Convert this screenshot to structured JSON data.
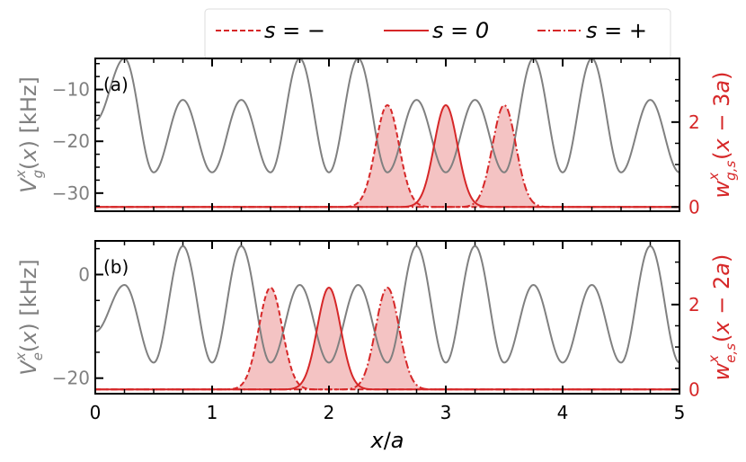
{
  "colors": {
    "potential": "#808080",
    "wannier": "#d62728",
    "fill": "#f2b8b8",
    "axis": "#000000"
  },
  "legend": [
    {
      "label": "s = −",
      "style": "dashed"
    },
    {
      "label": "s = 0",
      "style": "solid"
    },
    {
      "label": "s = +",
      "style": "dashdot"
    }
  ],
  "chart_data": [
    {
      "type": "line",
      "panel_label": "(a)",
      "xlabel": "x/a",
      "xlim": [
        0,
        5
      ],
      "xticks": [
        0,
        1,
        2,
        3,
        4,
        5
      ],
      "ylabel_left": "V_g^x(x) [kHz]",
      "ylim_left": [
        -33.5,
        -4
      ],
      "yticks_left": [
        -30,
        -20,
        -10
      ],
      "ytick_labels_left": [
        "−30",
        "−20",
        "−10"
      ],
      "ylabel_right": "w^x_{g,s}(x − 3a)",
      "ylim_right": [
        -0.1,
        3.5
      ],
      "yticks_right": [
        0,
        2
      ],
      "ytick_labels_right": [
        "0",
        "2"
      ],
      "potential": {
        "name": "V_g",
        "sampled_x": [
          0,
          0.25,
          0.5,
          0.75,
          1.0,
          1.25,
          1.5,
          1.75,
          2.0,
          2.25,
          2.5,
          2.75,
          3.0,
          3.25,
          3.5,
          3.75,
          4.0,
          4.25,
          4.5,
          4.75,
          5.0
        ],
        "sampled_y": [
          -16,
          -4,
          -26,
          -12,
          -26,
          -12,
          -26,
          -4,
          -26,
          -4,
          -26,
          -12,
          -26,
          -12,
          -26,
          -4,
          -26,
          -4,
          -26,
          -12,
          -26
        ]
      },
      "series": [
        {
          "name": "s = −",
          "style": "dashed",
          "center": 2.5,
          "peak": 2.4,
          "baseline": 0
        },
        {
          "name": "s = 0",
          "style": "solid",
          "center": 3.0,
          "peak": 2.4,
          "baseline": 0
        },
        {
          "name": "s = +",
          "style": "dashdot",
          "center": 3.5,
          "peak": 2.4,
          "baseline": 0
        }
      ]
    },
    {
      "type": "line",
      "panel_label": "(b)",
      "xlabel": "x/a",
      "xlim": [
        0,
        5
      ],
      "xticks": [
        0,
        1,
        2,
        3,
        4,
        5
      ],
      "xtick_labels": [
        "0",
        "1",
        "2",
        "3",
        "4",
        "5"
      ],
      "ylabel_left": "V_e^x(x) [kHz]",
      "ylim_left": [
        -23,
        6.5
      ],
      "yticks_left": [
        -20,
        0
      ],
      "ytick_labels_left": [
        "−20",
        "0"
      ],
      "ylabel_right": "w^x_{e,s}(x − 2a)",
      "ylim_right": [
        -0.1,
        3.5
      ],
      "yticks_right": [
        0,
        2
      ],
      "ytick_labels_right": [
        "0",
        "2"
      ],
      "potential": {
        "name": "V_e",
        "sampled_x": [
          0,
          0.25,
          0.5,
          0.75,
          1.0,
          1.25,
          1.5,
          1.75,
          2.0,
          2.25,
          2.5,
          2.75,
          3.0,
          3.25,
          3.5,
          3.75,
          4.0,
          4.25,
          4.5,
          4.75,
          5.0
        ],
        "sampled_y": [
          -11,
          -2,
          -17,
          5.5,
          -17,
          5.5,
          -17,
          -2,
          -17,
          -2,
          -17,
          5.5,
          -17,
          5.5,
          -17,
          -2,
          -17,
          -2,
          -17,
          5.5,
          -17
        ]
      },
      "series": [
        {
          "name": "s = −",
          "style": "dashed",
          "center": 1.5,
          "peak": 2.4,
          "baseline": 0
        },
        {
          "name": "s = 0",
          "style": "solid",
          "center": 2.0,
          "peak": 2.4,
          "baseline": 0
        },
        {
          "name": "s = +",
          "style": "dashdot",
          "center": 2.5,
          "peak": 2.4,
          "baseline": 0
        }
      ]
    }
  ]
}
